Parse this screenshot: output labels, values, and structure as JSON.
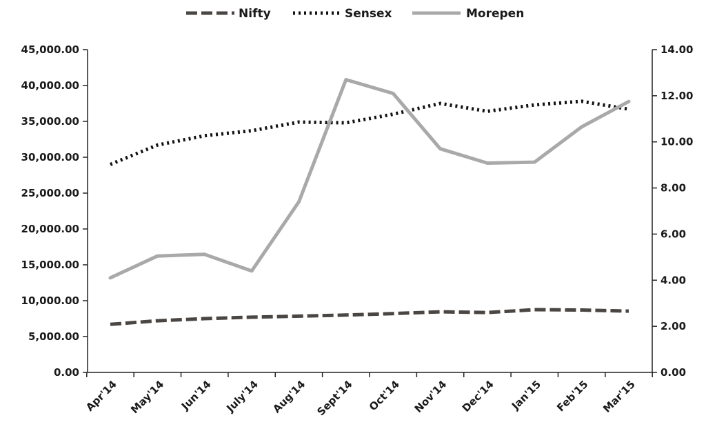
{
  "chart_data": {
    "type": "line",
    "categories": [
      "Apr'14",
      "May'14",
      "Jun'14",
      "July'14",
      "Aug'14",
      "Sept'14",
      "Oct'14",
      "Nov'14",
      "Dec'14",
      "Jan'15",
      "Feb'15",
      "Mar'15"
    ],
    "series": [
      {
        "name": "Nifty",
        "axis": "left",
        "style": "dashed",
        "color": "#4a4643",
        "values": [
          6700,
          7200,
          7500,
          7700,
          7850,
          8000,
          8200,
          8450,
          8350,
          8750,
          8700,
          8550
        ]
      },
      {
        "name": "Sensex",
        "axis": "left",
        "style": "dotted",
        "color": "#111111",
        "values": [
          29000,
          31700,
          33000,
          33700,
          34900,
          34800,
          36000,
          37500,
          36400,
          37300,
          37800,
          36700
        ]
      },
      {
        "name": "Morepen",
        "axis": "right",
        "style": "solid",
        "color": "#a9a9a9",
        "values": [
          4.1,
          5.05,
          5.12,
          4.4,
          7.4,
          12.7,
          12.1,
          9.7,
          9.08,
          9.12,
          10.65,
          11.75
        ]
      }
    ],
    "y_left": {
      "min": 0,
      "max": 45000,
      "ticks": [
        "0.00",
        "5,000.00",
        "10,000.00",
        "15,000.00",
        "20,000.00",
        "25,000.00",
        "30,000.00",
        "35,000.00",
        "40,000.00",
        "45,000.00"
      ]
    },
    "y_right": {
      "min": 0,
      "max": 14,
      "ticks": [
        "0.00",
        "2.00",
        "4.00",
        "6.00",
        "8.00",
        "10.00",
        "12.00",
        "14.00"
      ]
    },
    "legend_position": "top-center",
    "grid": false,
    "title": "",
    "xlabel": "",
    "ylabel": ""
  }
}
